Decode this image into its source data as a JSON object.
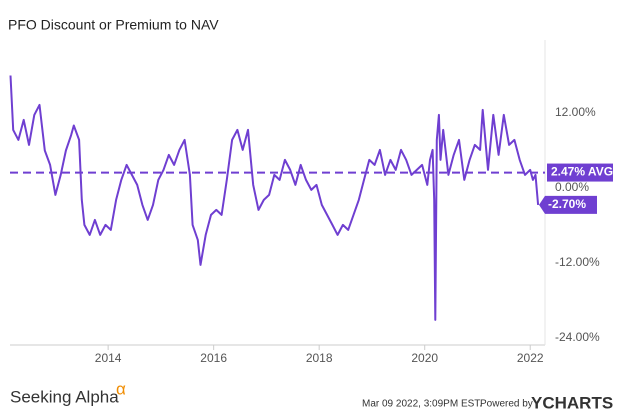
{
  "chart_data": {
    "type": "line",
    "title": "PFO Discount or Premium to NAV",
    "x": [
      2012.15,
      2012.2,
      2012.3,
      2012.4,
      2012.5,
      2012.6,
      2012.7,
      2012.8,
      2012.9,
      2013.0,
      2013.1,
      2013.2,
      2013.3,
      2013.35,
      2013.45,
      2013.5,
      2013.55,
      2013.65,
      2013.75,
      2013.85,
      2013.95,
      2014.05,
      2014.15,
      2014.25,
      2014.35,
      2014.45,
      2014.55,
      2014.65,
      2014.75,
      2014.85,
      2014.95,
      2015.05,
      2015.15,
      2015.25,
      2015.35,
      2015.45,
      2015.55,
      2015.6,
      2015.7,
      2015.75,
      2015.85,
      2015.95,
      2016.05,
      2016.15,
      2016.25,
      2016.35,
      2016.45,
      2016.55,
      2016.65,
      2016.75,
      2016.85,
      2016.95,
      2017.05,
      2017.15,
      2017.25,
      2017.35,
      2017.45,
      2017.55,
      2017.65,
      2017.75,
      2017.85,
      2017.95,
      2018.05,
      2018.15,
      2018.25,
      2018.35,
      2018.45,
      2018.55,
      2018.65,
      2018.75,
      2018.85,
      2018.95,
      2019.05,
      2019.15,
      2019.25,
      2019.35,
      2019.45,
      2019.55,
      2019.65,
      2019.75,
      2019.85,
      2019.95,
      2020.05,
      2020.1,
      2020.15,
      2020.18,
      2020.2,
      2020.23,
      2020.27,
      2020.3,
      2020.35,
      2020.45,
      2020.55,
      2020.65,
      2020.75,
      2020.85,
      2020.95,
      2021.05,
      2021.1,
      2021.2,
      2021.3,
      2021.4,
      2021.5,
      2021.6,
      2021.7,
      2021.8,
      2021.9,
      2022.0,
      2022.05,
      2022.1,
      2022.15
    ],
    "series": [
      {
        "name": "PFO Discount or Premium to NAV",
        "color": "#6f3fd1",
        "values": [
          18,
          9.3,
          7.7,
          10.9,
          6.9,
          11.7,
          13.3,
          6,
          3.7,
          -1.1,
          2.1,
          6,
          8.5,
          10,
          7.7,
          -1.9,
          -5.9,
          -7.5,
          -5.1,
          -7.5,
          -5.9,
          -6.7,
          -1.9,
          1.3,
          3.7,
          2.1,
          0.5,
          -2.7,
          -5.1,
          -2.7,
          1.3,
          2.9,
          5.3,
          3.7,
          6.1,
          7.7,
          2.1,
          -5.9,
          -8.3,
          -12.3,
          -7.5,
          -4.3,
          -3.5,
          -4.3,
          1.3,
          7.7,
          9.3,
          6.1,
          9.3,
          0.5,
          -3.5,
          -1.9,
          -1.1,
          2.1,
          1.3,
          4.5,
          2.9,
          0.5,
          3.7,
          1.3,
          -0.3,
          0.5,
          -2.7,
          -4.3,
          -5.9,
          -7.5,
          -5.9,
          -6.7,
          -4.3,
          -1.9,
          1.3,
          4.5,
          3.7,
          6.1,
          2.1,
          4.5,
          2.9,
          6.1,
          4.5,
          2.1,
          2.9,
          3.7,
          0.5,
          4.5,
          6.1,
          -1.9,
          -21.1,
          7.7,
          11.7,
          4.5,
          9.3,
          2.1,
          5.3,
          7.7,
          1.3,
          4.5,
          6.9,
          6.1,
          12.5,
          2.9,
          11.7,
          5.3,
          11.7,
          6.9,
          7.7,
          4.5,
          2.1,
          2.9,
          1.3,
          2.1,
          -2.7
        ],
        "value_labels": {
          "110": "-2.70%"
        }
      }
    ],
    "average": 2.47,
    "average_label": "2.47% AVG",
    "xlim": [
      2012.14,
      2022.28
    ],
    "xticks": [
      2014,
      2016,
      2018,
      2020,
      2022
    ],
    "ylim": [
      -25.12,
      23.68
    ],
    "yticks": [
      {
        "value": -24,
        "label": "-24.00%"
      },
      {
        "value": -12,
        "label": "-12.00%"
      },
      {
        "value": 0,
        "label": "0.00%"
      },
      {
        "value": 12,
        "label": "12.00%"
      }
    ],
    "grid": false
  },
  "footer": {
    "brand": "Seeking Alpha",
    "brand_mark": "α",
    "timestamp": "Mar 09 2022, 3:09PM EST.",
    "powered_by": "Powered by",
    "provider": "YCHARTS"
  }
}
